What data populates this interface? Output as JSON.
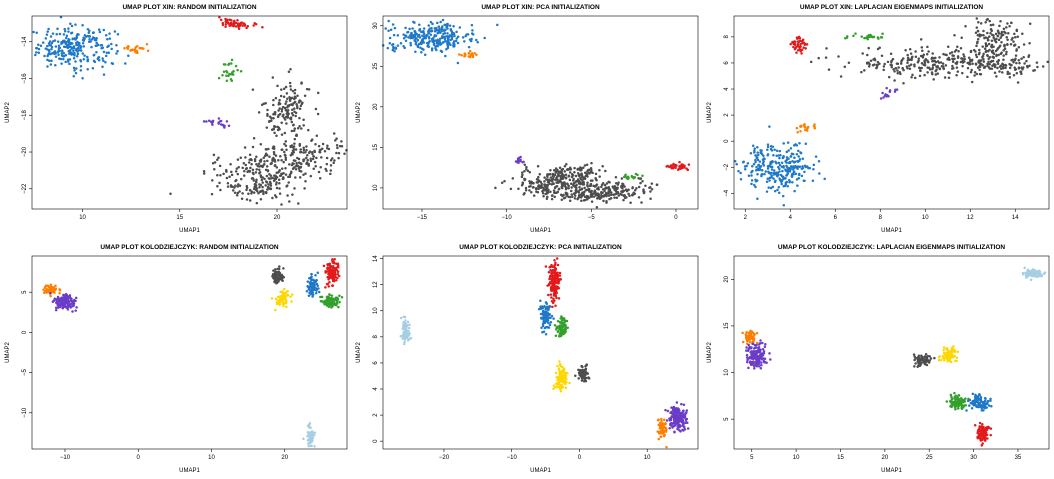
{
  "chart_data": [
    {
      "type": "scatter",
      "title": "UMAP PLOT XIN: RANDOM INITIALIZATION",
      "xlabel": "UMAP1",
      "ylabel": "UMAP2",
      "xlim": [
        7.4,
        23.6
      ],
      "ylim": [
        -23.1,
        -12.6
      ],
      "xticks": [
        10,
        15,
        20
      ],
      "yticks": [
        -14,
        -16,
        -18,
        -20,
        -22
      ],
      "series": [
        {
          "color": "#1f78c8",
          "clusters": [
            {
              "cx": 9.5,
              "cy": -14.3,
              "sx": 1.1,
              "sy": 0.55,
              "n": 260,
              "angle": 0
            }
          ]
        },
        {
          "color": "#ff7f00",
          "clusters": [
            {
              "cx": 12.8,
              "cy": -14.4,
              "sx": 0.3,
              "sy": 0.12,
              "n": 25,
              "angle": 0
            }
          ]
        },
        {
          "color": "#e31a1c",
          "clusters": [
            {
              "cx": 17.9,
              "cy": -13.0,
              "sx": 0.45,
              "sy": 0.12,
              "n": 55,
              "angle": 0
            }
          ]
        },
        {
          "color": "#33a02c",
          "clusters": [
            {
              "cx": 17.6,
              "cy": -15.6,
              "sx": 0.2,
              "sy": 0.3,
              "n": 25,
              "angle": 0
            }
          ]
        },
        {
          "color": "#6a3dc8",
          "clusters": [
            {
              "cx": 16.8,
              "cy": -18.4,
              "sx": 0.35,
              "sy": 0.12,
              "n": 20,
              "angle": -0.2
            }
          ]
        },
        {
          "color": "#4d4d4d",
          "clusters": [
            {
              "cx": 20.5,
              "cy": -17.8,
              "sx": 0.6,
              "sy": 0.9,
              "n": 150,
              "angle": 0
            },
            {
              "cx": 20.3,
              "cy": -20.6,
              "sx": 1.9,
              "sy": 0.6,
              "n": 300,
              "angle": 0.25
            },
            {
              "cx": 19.3,
              "cy": -22.0,
              "sx": 0.8,
              "sy": 0.4,
              "n": 90,
              "angle": 0
            }
          ]
        }
      ]
    },
    {
      "type": "scatter",
      "title": "UMAP PLOT XIN: PCA INITIALIZATION",
      "xlabel": "UMAP1",
      "ylabel": "UMAP2",
      "xlim": [
        -17.3,
        1.3
      ],
      "ylim": [
        7.4,
        31.2
      ],
      "xticks": [
        -15,
        -10,
        -5,
        0
      ],
      "yticks": [
        10,
        15,
        20,
        25,
        30
      ],
      "series": [
        {
          "color": "#1f78c8",
          "clusters": [
            {
              "cx": -14.5,
              "cy": 28.6,
              "sx": 1.3,
              "sy": 0.9,
              "n": 280,
              "angle": 0
            }
          ]
        },
        {
          "color": "#ff7f00",
          "clusters": [
            {
              "cx": -12.2,
              "cy": 26.4,
              "sx": 0.3,
              "sy": 0.2,
              "n": 20,
              "angle": 0
            }
          ]
        },
        {
          "color": "#e31a1c",
          "clusters": [
            {
              "cx": 0.0,
              "cy": 12.6,
              "sx": 0.35,
              "sy": 0.18,
              "n": 40,
              "angle": 0
            }
          ]
        },
        {
          "color": "#33a02c",
          "clusters": [
            {
              "cx": -2.7,
              "cy": 11.4,
              "sx": 0.3,
              "sy": 0.18,
              "n": 22,
              "angle": 0
            }
          ]
        },
        {
          "color": "#6a3dc8",
          "clusters": [
            {
              "cx": -9.2,
              "cy": 13.2,
              "sx": 0.15,
              "sy": 0.3,
              "n": 12,
              "angle": 0
            }
          ]
        },
        {
          "color": "#4d4d4d",
          "clusters": [
            {
              "cx": -7.0,
              "cy": 10.6,
              "sx": 1.3,
              "sy": 0.9,
              "n": 260,
              "angle": 0
            },
            {
              "cx": -4.2,
              "cy": 9.5,
              "sx": 1.4,
              "sy": 0.55,
              "n": 220,
              "angle": 0.15
            },
            {
              "cx": -6.0,
              "cy": 12.0,
              "sx": 0.8,
              "sy": 0.4,
              "n": 60,
              "angle": 0
            }
          ]
        }
      ]
    },
    {
      "type": "scatter",
      "title": "UMAP PLOT XIN: LAPLACIAN EIGENMAPS INITIALIZATION",
      "xlabel": "UMAP1",
      "ylabel": "UMAP2",
      "xlim": [
        1.5,
        15.5
      ],
      "ylim": [
        -5.2,
        9.6
      ],
      "xticks": [
        2,
        4,
        6,
        8,
        10,
        12,
        14
      ],
      "yticks": [
        -4,
        -2,
        0,
        2,
        4,
        6,
        8
      ],
      "series": [
        {
          "color": "#1f78c8",
          "clusters": [
            {
              "cx": 3.5,
              "cy": -2.0,
              "sx": 0.8,
              "sy": 0.9,
              "n": 280,
              "angle": 0
            }
          ]
        },
        {
          "color": "#ff7f00",
          "clusters": [
            {
              "cx": 4.7,
              "cy": 1.1,
              "sx": 0.25,
              "sy": 0.2,
              "n": 20,
              "angle": 0.5
            }
          ]
        },
        {
          "color": "#e31a1c",
          "clusters": [
            {
              "cx": 4.4,
              "cy": 7.4,
              "sx": 0.2,
              "sy": 0.3,
              "n": 45,
              "angle": 0
            }
          ]
        },
        {
          "color": "#33a02c",
          "clusters": [
            {
              "cx": 7.4,
              "cy": 8.0,
              "sx": 0.4,
              "sy": 0.1,
              "n": 25,
              "angle": 0
            }
          ]
        },
        {
          "color": "#6a3dc8",
          "clusters": [
            {
              "cx": 8.4,
              "cy": 3.7,
              "sx": 0.35,
              "sy": 0.12,
              "n": 15,
              "angle": 0.5
            }
          ]
        },
        {
          "color": "#4d4d4d",
          "clusters": [
            {
              "cx": 10.2,
              "cy": 6.0,
              "sx": 1.8,
              "sy": 0.55,
              "n": 260,
              "angle": 0
            },
            {
              "cx": 13.0,
              "cy": 7.6,
              "sx": 0.6,
              "sy": 0.9,
              "n": 150,
              "angle": 0
            },
            {
              "cx": 13.6,
              "cy": 5.8,
              "sx": 1.0,
              "sy": 0.5,
              "n": 80,
              "angle": 0
            }
          ]
        }
      ]
    },
    {
      "type": "scatter",
      "title": "UMAP PLOT KOLODZIEJCZYK: RANDOM INITIALIZATION",
      "xlabel": "UMAP1",
      "ylabel": "UMAP2",
      "xlim": [
        -14.5,
        28.5
      ],
      "ylim": [
        -14.5,
        9.5
      ],
      "xticks": [
        -10,
        0,
        10,
        20
      ],
      "yticks": [
        5,
        0,
        -5,
        -10
      ],
      "series": [
        {
          "color": "#ff7f00",
          "clusters": [
            {
              "cx": -11.9,
              "cy": 5.3,
              "sx": 0.5,
              "sy": 0.3,
              "n": 60,
              "angle": 0
            }
          ]
        },
        {
          "color": "#6a3dc8",
          "clusters": [
            {
              "cx": -10.0,
              "cy": 3.8,
              "sx": 0.7,
              "sy": 0.5,
              "n": 150,
              "angle": 0
            }
          ]
        },
        {
          "color": "#4d4d4d",
          "clusters": [
            {
              "cx": 19.0,
              "cy": 7.0,
              "sx": 0.45,
              "sy": 0.45,
              "n": 80,
              "angle": 0
            }
          ]
        },
        {
          "color": "#1f78c8",
          "clusters": [
            {
              "cx": 23.8,
              "cy": 5.8,
              "sx": 0.35,
              "sy": 0.7,
              "n": 80,
              "angle": 0
            }
          ]
        },
        {
          "color": "#e31a1c",
          "clusters": [
            {
              "cx": 26.4,
              "cy": 7.5,
              "sx": 0.45,
              "sy": 0.8,
              "n": 120,
              "angle": 0
            }
          ]
        },
        {
          "color": "#33a02c",
          "clusters": [
            {
              "cx": 26.3,
              "cy": 3.9,
              "sx": 0.6,
              "sy": 0.35,
              "n": 90,
              "angle": 0
            }
          ]
        },
        {
          "color": "#ffd700",
          "clusters": [
            {
              "cx": 19.7,
              "cy": 4.2,
              "sx": 0.5,
              "sy": 0.45,
              "n": 70,
              "angle": 0
            }
          ]
        },
        {
          "color": "#a6cee3",
          "clusters": [
            {
              "cx": 23.5,
              "cy": -13.0,
              "sx": 0.3,
              "sy": 0.6,
              "n": 70,
              "angle": 0
            }
          ]
        }
      ]
    },
    {
      "type": "scatter",
      "title": "UMAP PLOT KOLODZIEJCZYK: PCA INITIALIZATION",
      "xlabel": "UMAP1",
      "ylabel": "UMAP2",
      "xlim": [
        -29,
        17.5
      ],
      "ylim": [
        -0.6,
        14.2
      ],
      "xticks": [
        -20,
        -10,
        0,
        10
      ],
      "yticks": [
        0,
        2,
        4,
        6,
        8,
        10,
        12,
        14
      ],
      "series": [
        {
          "color": "#a6cee3",
          "clusters": [
            {
              "cx": -25.7,
              "cy": 8.5,
              "sx": 0.3,
              "sy": 0.5,
              "n": 80,
              "angle": 0
            }
          ]
        },
        {
          "color": "#1f78c8",
          "clusters": [
            {
              "cx": -5.0,
              "cy": 9.6,
              "sx": 0.35,
              "sy": 0.5,
              "n": 90,
              "angle": 0
            }
          ]
        },
        {
          "color": "#e31a1c",
          "clusters": [
            {
              "cx": -3.7,
              "cy": 12.3,
              "sx": 0.4,
              "sy": 0.75,
              "n": 150,
              "angle": 0
            }
          ]
        },
        {
          "color": "#33a02c",
          "clusters": [
            {
              "cx": -2.6,
              "cy": 8.7,
              "sx": 0.45,
              "sy": 0.35,
              "n": 80,
              "angle": 0
            }
          ]
        },
        {
          "color": "#ffd700",
          "clusters": [
            {
              "cx": -2.7,
              "cy": 4.9,
              "sx": 0.4,
              "sy": 0.5,
              "n": 90,
              "angle": 0
            }
          ]
        },
        {
          "color": "#4d4d4d",
          "clusters": [
            {
              "cx": 0.5,
              "cy": 5.2,
              "sx": 0.4,
              "sy": 0.3,
              "n": 70,
              "angle": 0
            }
          ]
        },
        {
          "color": "#ff7f00",
          "clusters": [
            {
              "cx": 12.2,
              "cy": 1.0,
              "sx": 0.35,
              "sy": 0.35,
              "n": 60,
              "angle": 0
            }
          ]
        },
        {
          "color": "#6a3dc8",
          "clusters": [
            {
              "cx": 14.5,
              "cy": 1.8,
              "sx": 0.7,
              "sy": 0.45,
              "n": 180,
              "angle": 0
            }
          ]
        }
      ]
    },
    {
      "type": "scatter",
      "title": "UMAP PLOT KOLODZIEJCZYK: LAPLACIAN EIGENMAPS INITIALIZATION",
      "xlabel": "UMAP1",
      "ylabel": "UMAP2",
      "xlim": [
        3.0,
        38.5
      ],
      "ylim": [
        1.8,
        22.5
      ],
      "xticks": [
        5,
        10,
        15,
        20,
        25,
        30,
        35
      ],
      "yticks": [
        5,
        10,
        15,
        20
      ],
      "series": [
        {
          "color": "#ff7f00",
          "clusters": [
            {
              "cx": 4.8,
              "cy": 13.8,
              "sx": 0.35,
              "sy": 0.4,
              "n": 60,
              "angle": 0
            }
          ]
        },
        {
          "color": "#6a3dc8",
          "clusters": [
            {
              "cx": 5.5,
              "cy": 11.8,
              "sx": 0.5,
              "sy": 0.7,
              "n": 160,
              "angle": 0
            }
          ]
        },
        {
          "color": "#4d4d4d",
          "clusters": [
            {
              "cx": 24.3,
              "cy": 11.3,
              "sx": 0.5,
              "sy": 0.3,
              "n": 80,
              "angle": 0
            }
          ]
        },
        {
          "color": "#ffd700",
          "clusters": [
            {
              "cx": 27.2,
              "cy": 11.8,
              "sx": 0.45,
              "sy": 0.4,
              "n": 80,
              "angle": 0
            }
          ]
        },
        {
          "color": "#33a02c",
          "clusters": [
            {
              "cx": 28.2,
              "cy": 6.8,
              "sx": 0.5,
              "sy": 0.4,
              "n": 90,
              "angle": 0
            }
          ]
        },
        {
          "color": "#1f78c8",
          "clusters": [
            {
              "cx": 30.6,
              "cy": 6.8,
              "sx": 0.6,
              "sy": 0.35,
              "n": 100,
              "angle": -0.3
            }
          ]
        },
        {
          "color": "#e31a1c",
          "clusters": [
            {
              "cx": 31.0,
              "cy": 3.5,
              "sx": 0.35,
              "sy": 0.45,
              "n": 110,
              "angle": 0
            }
          ]
        },
        {
          "color": "#a6cee3",
          "clusters": [
            {
              "cx": 36.7,
              "cy": 20.6,
              "sx": 0.55,
              "sy": 0.2,
              "n": 90,
              "angle": 0
            }
          ]
        }
      ]
    }
  ]
}
